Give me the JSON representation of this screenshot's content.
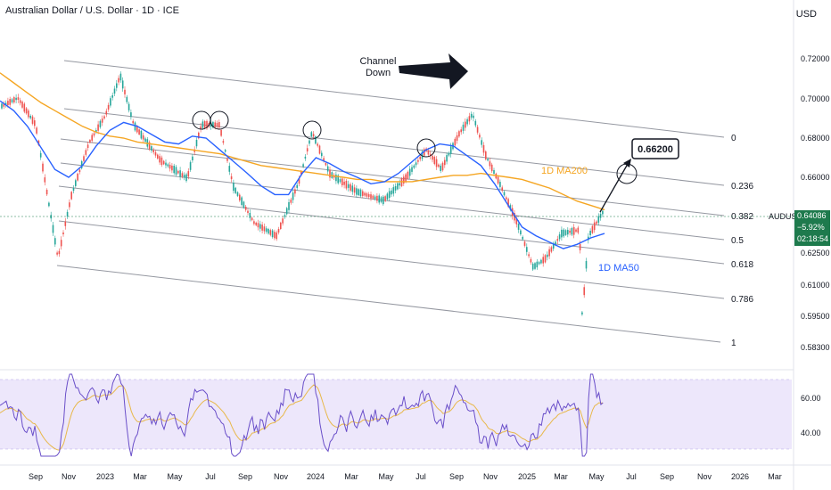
{
  "header": {
    "title": "Australian Dollar / U.S. Dollar · 1D · ICE"
  },
  "currency_label": "USD",
  "symbol": "AUDUSD",
  "last_price": {
    "price": "0.64086",
    "change": "−5.92%",
    "countdown": "02:18:54"
  },
  "colors": {
    "ma200": "#f5a623",
    "ma50": "#2962ff",
    "rsi": "#6a4fc9",
    "rsi_ma": "#e8b84a",
    "rsi_band": "#ede7fb",
    "price_up": "#26a69a",
    "price_down": "#ef5350",
    "tag_bg": "#1e7a4d"
  },
  "annotations": {
    "channel_text_1": "Channel",
    "channel_text_2": "Down",
    "target": "0.66200",
    "ma200_label": "1D MA200",
    "ma50_label": "1D MA50"
  },
  "chart_data": [
    {
      "type": "line",
      "title": "Australian Dollar / U.S. Dollar · 1D · ICE",
      "y_axis_ticks": [
        "0.72000",
        "0.70000",
        "0.68000",
        "0.66000",
        "0.62500",
        "0.61000",
        "0.59500",
        "0.58300"
      ],
      "x_axis_ticks": [
        "Sep",
        "Nov",
        "2023",
        "Mar",
        "May",
        "Jul",
        "Sep",
        "Nov",
        "2024",
        "Mar",
        "May",
        "Jul",
        "Sep",
        "Nov",
        "2025",
        "Mar",
        "May",
        "Jul",
        "Sep",
        "Nov",
        "2026",
        "Mar"
      ],
      "fib_levels": [
        "0",
        "0.236",
        "0.382",
        "0.5",
        "0.618",
        "0.786",
        "1"
      ],
      "series": [
        {
          "name": "1D MA200",
          "values": [
            0.713,
            0.708,
            0.703,
            0.698,
            0.694,
            0.69,
            0.686,
            0.683,
            0.681,
            0.68,
            0.678,
            0.677,
            0.676,
            0.675,
            0.674,
            0.673,
            0.672,
            0.67,
            0.668,
            0.666,
            0.665,
            0.664,
            0.663,
            0.662,
            0.661,
            0.66,
            0.659,
            0.659,
            0.658,
            0.658,
            0.658,
            0.659,
            0.66,
            0.661,
            0.661,
            0.662,
            0.661,
            0.66,
            0.659,
            0.657,
            0.655,
            0.652,
            0.649,
            0.647,
            0.645
          ]
        },
        {
          "name": "1D MA50",
          "values": [
            0.699,
            0.694,
            0.686,
            0.675,
            0.664,
            0.66,
            0.666,
            0.676,
            0.684,
            0.688,
            0.686,
            0.682,
            0.678,
            0.677,
            0.681,
            0.68,
            0.674,
            0.668,
            0.662,
            0.656,
            0.652,
            0.652,
            0.662,
            0.67,
            0.667,
            0.663,
            0.66,
            0.657,
            0.658,
            0.662,
            0.668,
            0.674,
            0.677,
            0.676,
            0.671,
            0.666,
            0.657,
            0.647,
            0.637,
            0.633,
            0.63,
            0.627,
            0.629,
            0.632,
            0.634
          ]
        }
      ],
      "rsi_ticks": [
        "60.00",
        "40.00"
      ]
    }
  ]
}
